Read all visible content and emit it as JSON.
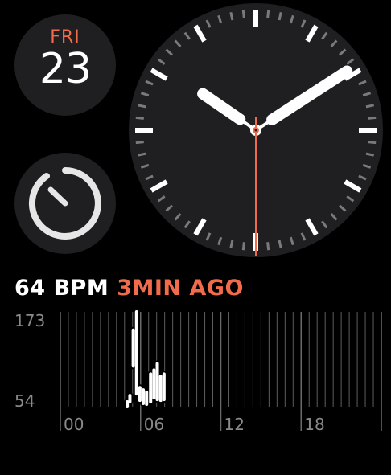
{
  "colors": {
    "accent": "#f26b4a",
    "dial_bg": "#1f1f21",
    "hand": "#ffffff",
    "seconds_hand": "#f26b4a",
    "tick_minor": "#7a7a7a",
    "label_gray": "#8a8a8a"
  },
  "date": {
    "day_of_week": "FRI",
    "day": "23"
  },
  "timer": {
    "icon": "stopwatch-icon"
  },
  "clock": {
    "hour": 10,
    "minute": 9,
    "second": 30
  },
  "heart_rate": {
    "value_label": "64 BPM",
    "ago_label": "3MIN AGO"
  },
  "chart_data": {
    "type": "bar",
    "y_max_label": "173",
    "y_min_label": "54",
    "ylim": [
      54,
      173
    ],
    "x_labels": [
      "00",
      "06",
      "12",
      "18"
    ],
    "x_range_hours": [
      0,
      24
    ],
    "samples": [
      {
        "hour": 5.0,
        "low": 54,
        "high": 60
      },
      {
        "hour": 5.2,
        "low": 60,
        "high": 68
      },
      {
        "hour": 5.45,
        "low": 105,
        "high": 150
      },
      {
        "hour": 5.7,
        "low": 70,
        "high": 173
      },
      {
        "hour": 5.95,
        "low": 62,
        "high": 78
      },
      {
        "hour": 6.2,
        "low": 58,
        "high": 75
      },
      {
        "hour": 6.45,
        "low": 57,
        "high": 72
      },
      {
        "hour": 6.75,
        "low": 60,
        "high": 95
      },
      {
        "hour": 7.0,
        "low": 65,
        "high": 100
      },
      {
        "hour": 7.25,
        "low": 63,
        "high": 108
      },
      {
        "hour": 7.5,
        "low": 62,
        "high": 92
      },
      {
        "hour": 7.75,
        "low": 63,
        "high": 95
      }
    ]
  }
}
